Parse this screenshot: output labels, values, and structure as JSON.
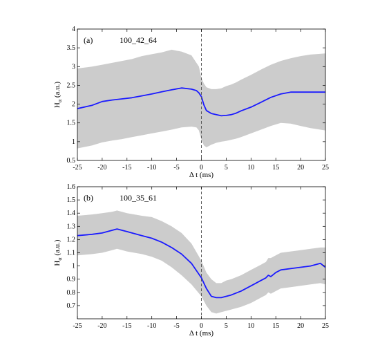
{
  "chart_data": [
    {
      "type": "line",
      "panel_label": "(a)",
      "annotation": "100_42_64",
      "xlabel": "Δ t (ms)",
      "ylabel": "Hα (a.u.)",
      "xlim": [
        -25,
        25
      ],
      "ylim": [
        0.5,
        4
      ],
      "xticks": [
        -25,
        -20,
        -15,
        -10,
        -5,
        0,
        5,
        10,
        15,
        20,
        25
      ],
      "yticks": [
        0.5,
        1,
        1.5,
        2,
        2.5,
        3,
        3.5,
        4
      ],
      "vline_x": 0,
      "colors": {
        "line": "#1a1aff",
        "band": "#cccccc",
        "vline": "#555555"
      },
      "series": [
        {
          "x": [
            -25,
            -22,
            -20,
            -18,
            -16,
            -14,
            -12,
            -10,
            -8,
            -6,
            -4,
            -2,
            -1,
            -0.5,
            0,
            0.5,
            1,
            2,
            3,
            4,
            5,
            6,
            7,
            8,
            10,
            12,
            14,
            16,
            18,
            20,
            22,
            25
          ],
          "mean": [
            1.88,
            1.97,
            2.07,
            2.11,
            2.14,
            2.17,
            2.22,
            2.27,
            2.33,
            2.38,
            2.43,
            2.4,
            2.36,
            2.3,
            2.2,
            1.98,
            1.83,
            1.75,
            1.72,
            1.69,
            1.7,
            1.72,
            1.76,
            1.82,
            1.92,
            2.05,
            2.18,
            2.27,
            2.32,
            2.32,
            2.32,
            2.32
          ],
          "upper": [
            2.95,
            3.0,
            3.05,
            3.1,
            3.15,
            3.2,
            3.28,
            3.33,
            3.38,
            3.45,
            3.4,
            3.3,
            3.1,
            3.0,
            2.7,
            2.55,
            2.45,
            2.4,
            2.4,
            2.42,
            2.48,
            2.52,
            2.58,
            2.65,
            2.78,
            2.92,
            3.05,
            3.15,
            3.22,
            3.28,
            3.32,
            3.35
          ],
          "lower": [
            0.82,
            0.9,
            0.98,
            1.03,
            1.07,
            1.12,
            1.17,
            1.22,
            1.27,
            1.32,
            1.38,
            1.4,
            1.38,
            1.3,
            1.05,
            0.9,
            0.85,
            0.92,
            0.97,
            1.0,
            1.02,
            1.05,
            1.08,
            1.12,
            1.22,
            1.32,
            1.42,
            1.5,
            1.48,
            1.42,
            1.36,
            1.3
          ]
        }
      ]
    },
    {
      "type": "line",
      "panel_label": "(b)",
      "annotation": "100_35_61",
      "xlabel": "Δ t (ms)",
      "ylabel": "Hα (a.u.)",
      "xlim": [
        -25,
        25
      ],
      "ylim": [
        0.6,
        1.6
      ],
      "xticks": [
        -25,
        -20,
        -15,
        -10,
        -5,
        0,
        5,
        10,
        15,
        20,
        25
      ],
      "yticks": [
        0.7,
        0.8,
        0.9,
        1,
        1.1,
        1.2,
        1.3,
        1.4,
        1.5,
        1.6
      ],
      "vline_x": 0,
      "colors": {
        "line": "#1a1aff",
        "band": "#cccccc",
        "vline": "#555555"
      },
      "series": [
        {
          "x": [
            -25,
            -22,
            -20,
            -18,
            -17,
            -15,
            -12,
            -10,
            -8,
            -6,
            -4,
            -2,
            0,
            1,
            2,
            3,
            4,
            5,
            6,
            8,
            10,
            12,
            13,
            13.5,
            14,
            15,
            16,
            18,
            20,
            22,
            24,
            25
          ],
          "mean": [
            1.23,
            1.24,
            1.25,
            1.27,
            1.28,
            1.26,
            1.23,
            1.21,
            1.18,
            1.14,
            1.09,
            1.02,
            0.91,
            0.83,
            0.77,
            0.76,
            0.76,
            0.77,
            0.78,
            0.81,
            0.85,
            0.89,
            0.91,
            0.93,
            0.92,
            0.95,
            0.97,
            0.98,
            0.99,
            1.0,
            1.02,
            0.99
          ],
          "upper": [
            1.38,
            1.39,
            1.4,
            1.41,
            1.42,
            1.4,
            1.38,
            1.37,
            1.34,
            1.3,
            1.25,
            1.17,
            1.04,
            0.95,
            0.9,
            0.87,
            0.87,
            0.89,
            0.9,
            0.93,
            0.97,
            1.01,
            1.03,
            1.06,
            1.06,
            1.08,
            1.1,
            1.11,
            1.12,
            1.13,
            1.14,
            1.14
          ],
          "lower": [
            1.08,
            1.09,
            1.1,
            1.12,
            1.13,
            1.11,
            1.09,
            1.07,
            1.04,
            0.99,
            0.93,
            0.86,
            0.77,
            0.7,
            0.65,
            0.64,
            0.65,
            0.66,
            0.67,
            0.69,
            0.72,
            0.76,
            0.78,
            0.8,
            0.79,
            0.81,
            0.83,
            0.84,
            0.85,
            0.86,
            0.87,
            0.86
          ]
        }
      ]
    }
  ]
}
